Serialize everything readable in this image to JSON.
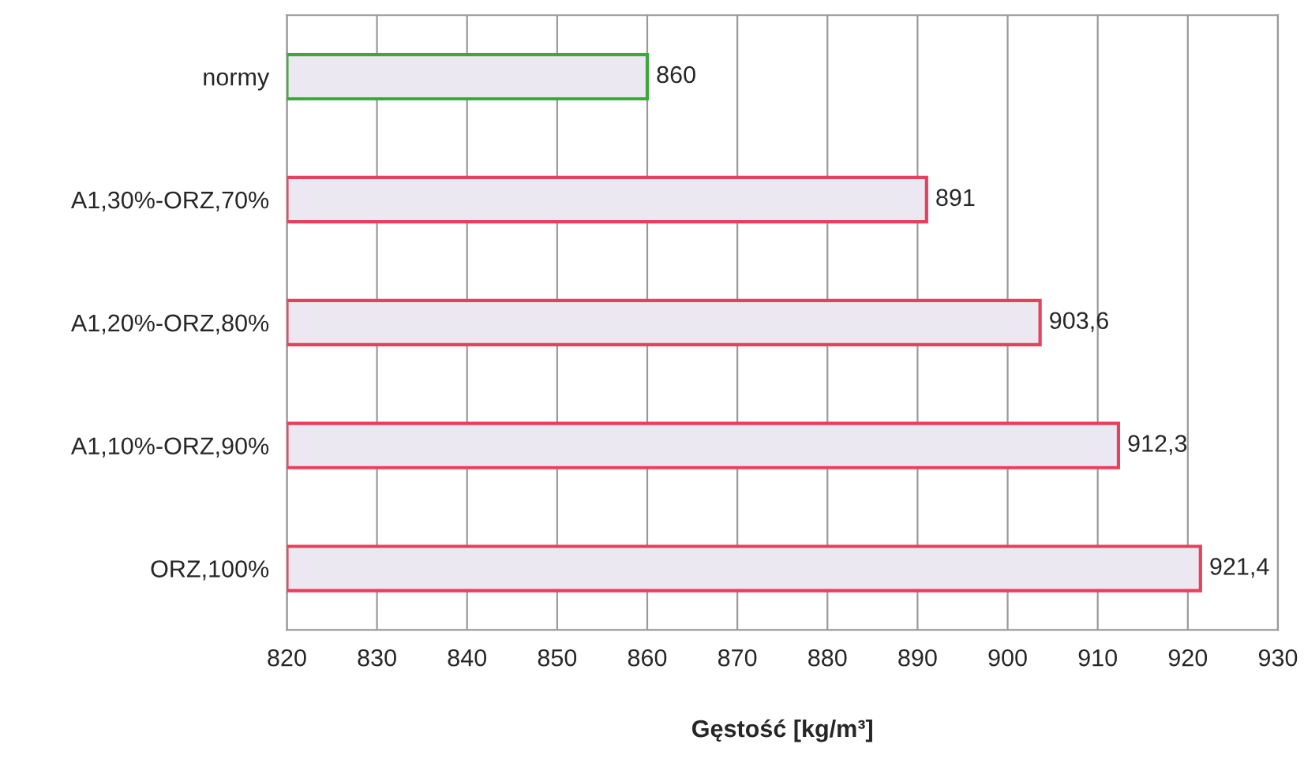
{
  "chart_data": {
    "type": "bar",
    "orientation": "horizontal",
    "xlabel": "Gęstość [kg/m³]",
    "categories": [
      "normy",
      "A1,30%-ORZ,70%",
      "A1,20%-ORZ,80%",
      "A1,10%-ORZ,90%",
      "ORZ,100%"
    ],
    "values": [
      860,
      891,
      903.6,
      912.3,
      921.4
    ],
    "value_labels": [
      "860",
      "891",
      "903,6",
      "912,3",
      "921,4"
    ],
    "colors": [
      "#3aa83a",
      "#e8405c",
      "#e8405c",
      "#e8405c",
      "#e8405c"
    ],
    "xlim": [
      820,
      930
    ],
    "xticks": [
      820,
      830,
      840,
      850,
      860,
      870,
      880,
      890,
      900,
      910,
      920,
      930
    ],
    "grid": "x",
    "legend": false
  }
}
